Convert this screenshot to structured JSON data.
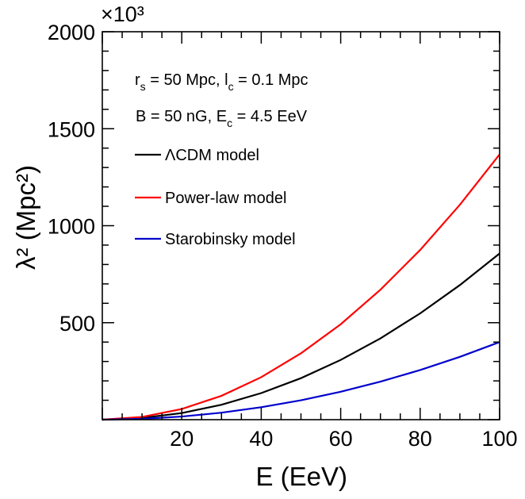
{
  "chart_data": {
    "type": "line",
    "title": "",
    "xlabel": "E (EeV)",
    "ylabel": "λ² (Mpc²)",
    "y_multiplier_label": "×10³",
    "xlim": [
      0,
      100
    ],
    "ylim": [
      0,
      2000
    ],
    "x_major_ticks": [
      20,
      40,
      60,
      80,
      100
    ],
    "y_major_ticks": [
      500,
      1000,
      1500,
      2000
    ],
    "x_tick_labels": [
      "20",
      "40",
      "60",
      "80",
      "100"
    ],
    "y_tick_labels": [
      "500",
      "1000",
      "1500",
      "2000"
    ],
    "grid": false,
    "legend_position": "top-left",
    "annotations": [
      {
        "id": "rs_lc",
        "parts": [
          "r",
          "s",
          " = 50 Mpc, l",
          "c",
          " = 0.1 Mpc"
        ]
      },
      {
        "id": "b_ec",
        "parts": [
          "B = 50 nG, E",
          "c",
          " = 4.5 EeV"
        ]
      }
    ],
    "series": [
      {
        "name": "ΛCDM model",
        "color": "#000000",
        "x": [
          0,
          10,
          20,
          30,
          40,
          50,
          60,
          70,
          80,
          90,
          100
        ],
        "y": [
          0,
          9,
          34,
          77,
          137,
          214,
          308,
          419,
          548,
          694,
          857
        ]
      },
      {
        "name": "Power-law model",
        "color": "#ff0000",
        "x": [
          0,
          10,
          20,
          30,
          40,
          50,
          60,
          70,
          80,
          90,
          100
        ],
        "y": [
          0,
          14,
          55,
          123,
          219,
          342,
          492,
          670,
          875,
          1108,
          1368
        ]
      },
      {
        "name": "Starobinsky model",
        "color": "#0000cc",
        "x": [
          0,
          10,
          20,
          30,
          40,
          50,
          60,
          70,
          80,
          90,
          100
        ],
        "y": [
          0,
          4,
          16,
          36,
          64,
          100,
          144,
          196,
          256,
          324,
          400
        ]
      }
    ]
  }
}
